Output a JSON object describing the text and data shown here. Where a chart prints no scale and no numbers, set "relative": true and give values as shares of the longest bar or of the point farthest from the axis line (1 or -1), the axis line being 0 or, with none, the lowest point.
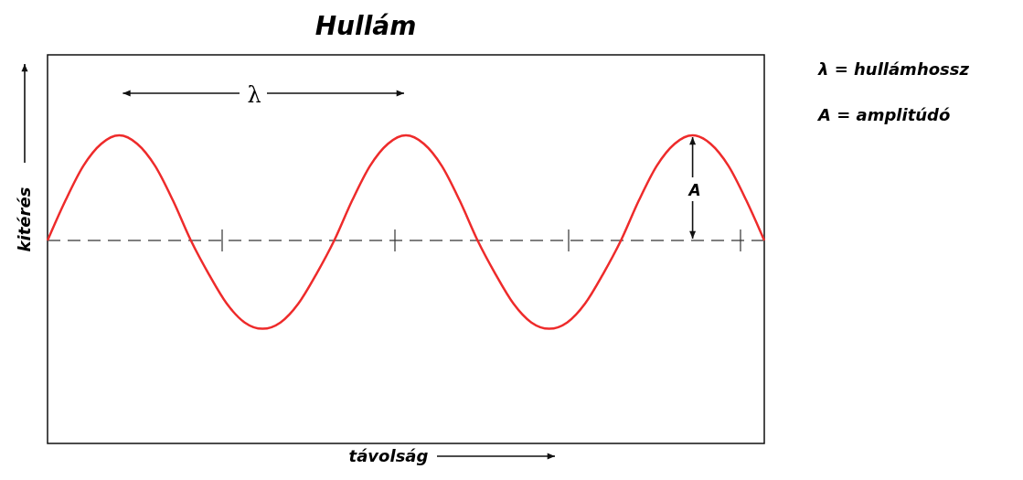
{
  "chart_data": {
    "type": "line",
    "title": "Hullám",
    "ylabel": "kitérés",
    "relative": true,
    "categories": [
      null,
      null,
      null,
      null,
      null,
      null,
      null,
      null,
      null,
      null,
      null,
      null,
      null,
      null,
      null,
      null,
      null,
      null,
      null,
      null,
      null,
      null,
      null,
      null,
      null,
      null,
      null,
      null,
      null,
      null,
      null,
      null,
      null,
      null,
      null,
      null,
      null,
      null,
      null,
      null,
      null
    ],
    "series": [
      {
        "color": "#ee2b2b",
        "values": [
          0,
          0.38,
          0.71,
          0.92,
          1,
          0.92,
          0.71,
          0.38,
          0,
          -0.32,
          -0.6,
          -0.78,
          -0.84,
          -0.78,
          -0.6,
          -0.32,
          0,
          0.38,
          0.71,
          0.92,
          1,
          0.92,
          0.71,
          0.38,
          0,
          -0.32,
          -0.6,
          -0.78,
          -0.84,
          -0.78,
          -0.6,
          -0.32,
          0,
          0.38,
          0.71,
          0.92,
          1,
          0.92,
          0.71,
          0.38,
          0
        ]
      }
    ],
    "ref_lines": [
      {
        "axis": "y",
        "value": 0,
        "color": "#555555",
        "line_style": "dashed"
      }
    ],
    "annotations": [
      "λ",
      "A",
      "λ = hullámhossz",
      "A = amplitúdó",
      "távolság"
    ]
  }
}
